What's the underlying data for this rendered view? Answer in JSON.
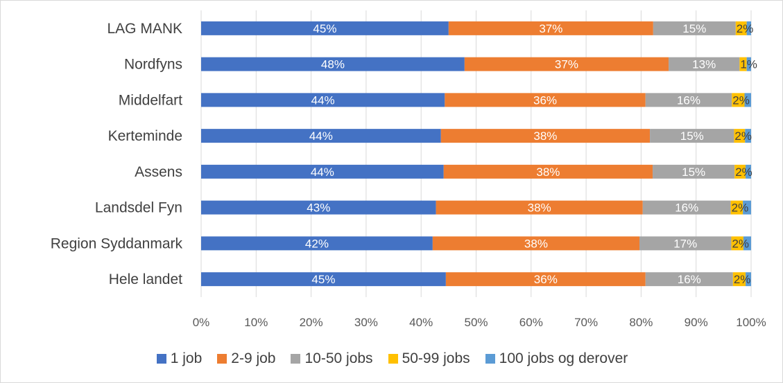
{
  "chart_data": {
    "type": "bar",
    "orientation": "horizontal",
    "stacked": true,
    "title": "",
    "xlabel": "",
    "ylabel": "",
    "xlim": [
      0,
      100
    ],
    "x_ticks": [
      "0%",
      "10%",
      "20%",
      "30%",
      "40%",
      "50%",
      "60%",
      "70%",
      "80%",
      "90%",
      "100%"
    ],
    "grid": true,
    "legend_position": "bottom",
    "categories": [
      "LAG MANK",
      "Nordfyns",
      "Middelfart",
      "Kerteminde",
      "Assens",
      "Landsdel Fyn",
      "Region Syddanmark",
      "Hele landet"
    ],
    "series": [
      {
        "name": "1 job",
        "color": "#4472c4",
        "values": [
          45.0,
          47.9,
          44.3,
          43.6,
          44.1,
          42.7,
          42.1,
          44.5
        ],
        "labels": [
          "45%",
          "48%",
          "44%",
          "44%",
          "44%",
          "43%",
          "42%",
          "45%"
        ]
      },
      {
        "name": "2-9 job",
        "color": "#ed7d31",
        "values": [
          37.2,
          37.1,
          36.5,
          38.0,
          38.0,
          37.6,
          37.6,
          36.3
        ],
        "labels": [
          "37%",
          "37%",
          "36%",
          "38%",
          "38%",
          "38%",
          "38%",
          "36%"
        ]
      },
      {
        "name": "10-50 jobs",
        "color": "#a5a5a5",
        "values": [
          15.0,
          12.9,
          15.7,
          15.3,
          14.9,
          16.0,
          16.7,
          15.9
        ],
        "labels": [
          "15%",
          "13%",
          "16%",
          "15%",
          "15%",
          "16%",
          "17%",
          "16%"
        ]
      },
      {
        "name": "50-99 jobs",
        "color": "#ffc000",
        "values": [
          2.0,
          1.3,
          2.3,
          2.0,
          2.0,
          2.2,
          2.2,
          2.3
        ],
        "labels": [
          "2%",
          "1%",
          "2%",
          "2%",
          "2%",
          "2%",
          "2%",
          "2%"
        ]
      },
      {
        "name": "100 jobs og derover",
        "color": "#5b9bd5",
        "values": [
          0.8,
          0.8,
          1.2,
          1.1,
          1.0,
          1.5,
          1.4,
          1.0
        ],
        "labels": [
          "",
          "",
          "",
          "",
          "",
          "",
          "",
          ""
        ]
      }
    ]
  }
}
